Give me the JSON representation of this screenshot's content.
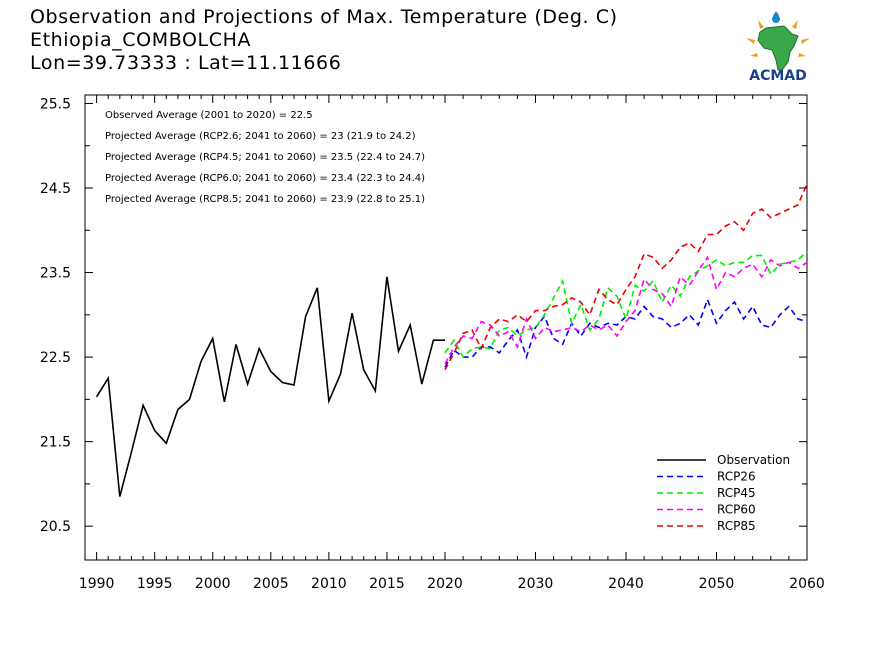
{
  "title": {
    "line1": "Observation and Projections of Max. Temperature (Deg. C)",
    "line2": "Ethiopia_COMBOLCHA",
    "line3": "Lon=39.73333 : Lat=11.11666"
  },
  "logo": {
    "text": "ACMAD",
    "icon": "africa-map-logo"
  },
  "annotations": [
    "Observed Average (2001 to 2020) = 22.5",
    "Projected Average (RCP2.6; 2041 to 2060) = 23 (21.9 to 24.2)",
    "Projected Average (RCP4.5; 2041 to 2060) = 23.5 (22.4 to 24.7)",
    "Projected Average (RCP6.0; 2041 to 2060) = 23.4 (22.3 to 24.4)",
    "Projected Average (RCP8.5; 2041 to 2060) = 23.9 (22.8 to 25.1)"
  ],
  "chart_data": {
    "type": "line",
    "grid": false,
    "legend_position": "bottom-right",
    "ylim": [
      20.1,
      25.6
    ],
    "y_ticks": [
      "20.5",
      "21.5",
      "22.5",
      "23.5",
      "24.5",
      "25.5"
    ],
    "x_ticks_left": [
      "1990",
      "1995",
      "2000",
      "2005",
      "2010",
      "2015",
      "2020"
    ],
    "x_ticks_right": [
      "2020",
      "2030",
      "2040",
      "2050",
      "2060"
    ],
    "series": [
      {
        "name": "Observation",
        "color": "#000000",
        "dashed": false,
        "x": [
          1990,
          1991,
          1992,
          1993,
          1994,
          1995,
          1996,
          1997,
          1998,
          1999,
          2000,
          2001,
          2002,
          2003,
          2004,
          2005,
          2006,
          2007,
          2008,
          2009,
          2010,
          2011,
          2012,
          2013,
          2014,
          2015,
          2016,
          2017,
          2018,
          2019,
          2020
        ],
        "values": [
          22.03,
          22.25,
          20.85,
          21.38,
          21.93,
          21.63,
          21.48,
          21.88,
          22.0,
          22.45,
          22.72,
          21.97,
          22.65,
          22.18,
          22.6,
          22.33,
          22.2,
          22.17,
          22.98,
          23.32,
          21.98,
          22.3,
          23.02,
          22.35,
          22.1,
          23.45,
          22.57,
          22.88,
          22.18,
          22.7,
          22.7
        ]
      },
      {
        "name": "RCP26",
        "color": "#0000ff",
        "dashed": true,
        "x": [
          2020,
          2021,
          2022,
          2023,
          2024,
          2025,
          2026,
          2027,
          2028,
          2029,
          2030,
          2031,
          2032,
          2033,
          2034,
          2035,
          2036,
          2037,
          2038,
          2039,
          2040,
          2041,
          2042,
          2043,
          2044,
          2045,
          2046,
          2047,
          2048,
          2049,
          2050,
          2051,
          2052,
          2053,
          2054,
          2055,
          2056,
          2057,
          2058,
          2059,
          2060
        ],
        "values": [
          22.38,
          22.58,
          22.5,
          22.5,
          22.62,
          22.62,
          22.55,
          22.7,
          22.82,
          22.5,
          22.85,
          22.98,
          22.72,
          22.65,
          22.9,
          22.75,
          22.9,
          22.85,
          22.9,
          22.88,
          22.98,
          22.95,
          23.1,
          22.98,
          22.95,
          22.85,
          22.9,
          23.0,
          22.88,
          23.18,
          22.9,
          23.05,
          23.15,
          22.95,
          23.1,
          22.88,
          22.85,
          23.0,
          23.1,
          22.95,
          22.92
        ]
      },
      {
        "name": "RCP45",
        "color": "#00ee00",
        "dashed": true,
        "x": [
          2020,
          2021,
          2022,
          2023,
          2024,
          2025,
          2026,
          2027,
          2028,
          2029,
          2030,
          2031,
          2032,
          2033,
          2034,
          2035,
          2036,
          2037,
          2038,
          2039,
          2040,
          2041,
          2042,
          2043,
          2044,
          2045,
          2046,
          2047,
          2048,
          2049,
          2050,
          2051,
          2052,
          2053,
          2054,
          2055,
          2056,
          2057,
          2058,
          2059,
          2060
        ],
        "values": [
          22.55,
          22.7,
          22.5,
          22.6,
          22.62,
          22.6,
          22.82,
          22.85,
          22.75,
          22.82,
          22.85,
          23.0,
          23.2,
          23.4,
          22.9,
          23.12,
          22.82,
          22.95,
          23.32,
          23.22,
          22.95,
          23.35,
          23.28,
          23.4,
          23.15,
          23.35,
          23.22,
          23.45,
          23.52,
          23.58,
          23.65,
          23.58,
          23.62,
          23.62,
          23.7,
          23.7,
          23.48,
          23.6,
          23.62,
          23.65,
          23.75
        ]
      },
      {
        "name": "RCP60",
        "color": "#ff00ff",
        "dashed": true,
        "x": [
          2020,
          2021,
          2022,
          2023,
          2024,
          2025,
          2026,
          2027,
          2028,
          2029,
          2030,
          2031,
          2032,
          2033,
          2034,
          2035,
          2036,
          2037,
          2038,
          2039,
          2040,
          2041,
          2042,
          2043,
          2044,
          2045,
          2046,
          2047,
          2048,
          2049,
          2050,
          2051,
          2052,
          2053,
          2054,
          2055,
          2056,
          2057,
          2058,
          2059,
          2060
        ],
        "values": [
          22.42,
          22.62,
          22.75,
          22.72,
          22.92,
          22.88,
          22.75,
          22.8,
          22.62,
          22.95,
          22.72,
          22.85,
          22.8,
          22.82,
          22.85,
          22.8,
          22.88,
          22.82,
          22.88,
          22.75,
          22.92,
          23.05,
          23.42,
          23.3,
          23.25,
          23.1,
          23.45,
          23.35,
          23.52,
          23.68,
          23.3,
          23.5,
          23.45,
          23.55,
          23.6,
          23.45,
          23.65,
          23.58,
          23.62,
          23.55,
          23.62
        ]
      },
      {
        "name": "RCP85",
        "color": "#ee0000",
        "dashed": true,
        "x": [
          2020,
          2021,
          2022,
          2023,
          2024,
          2025,
          2026,
          2027,
          2028,
          2029,
          2030,
          2031,
          2032,
          2033,
          2034,
          2035,
          2036,
          2037,
          2038,
          2039,
          2040,
          2041,
          2042,
          2043,
          2044,
          2045,
          2046,
          2047,
          2048,
          2049,
          2050,
          2051,
          2052,
          2053,
          2054,
          2055,
          2056,
          2057,
          2058,
          2059,
          2060
        ],
        "values": [
          22.35,
          22.55,
          22.78,
          22.82,
          22.6,
          22.85,
          22.95,
          22.92,
          23.0,
          22.92,
          23.05,
          23.05,
          23.1,
          23.12,
          23.2,
          23.15,
          23.0,
          23.3,
          23.18,
          23.12,
          23.3,
          23.45,
          23.72,
          23.68,
          23.55,
          23.65,
          23.8,
          23.85,
          23.75,
          23.95,
          23.95,
          24.05,
          24.1,
          24.0,
          24.2,
          24.25,
          24.15,
          24.2,
          24.25,
          24.3,
          24.55
        ]
      }
    ]
  }
}
